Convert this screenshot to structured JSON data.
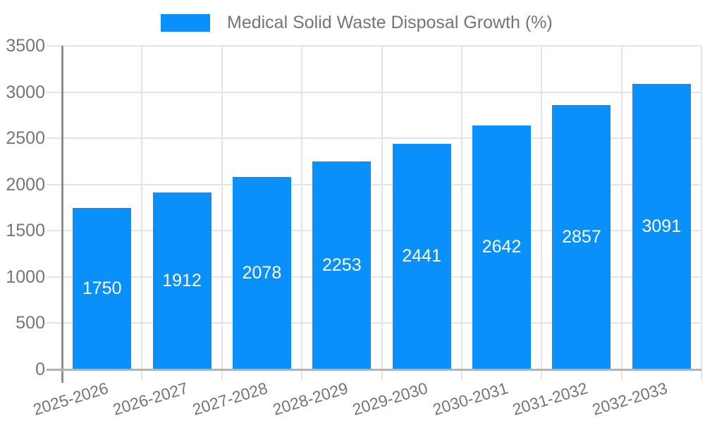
{
  "chart_data": {
    "type": "bar",
    "title": "Medical Solid Waste Disposal Growth (%)",
    "categories": [
      "2025-2026",
      "2026-2027",
      "2027-2028",
      "2028-2029",
      "2029-2030",
      "2030-2031",
      "2031-2032",
      "2032-2033"
    ],
    "values": [
      1750,
      1912,
      2078,
      2253,
      2441,
      2642,
      2857,
      3091
    ],
    "xlabel": "",
    "ylabel": "",
    "ylim": [
      0,
      3500
    ],
    "ytick_step": 500,
    "y_tick_labels": [
      "0",
      "500",
      "1000",
      "1500",
      "2000",
      "2500",
      "3000",
      "3500"
    ],
    "grid": true,
    "legend_position": "top",
    "colors": {
      "bar": "#0a90fa",
      "bar_label": "#ffffff",
      "axis_text": "#757575",
      "gridline": "#e4e4e4",
      "y_axis_line": "#8f8f8f",
      "x_axis_line": "#b3b3b3",
      "background": "#ffffff"
    }
  },
  "legend": {
    "label": "Medical Solid Waste Disposal Growth (%)"
  }
}
